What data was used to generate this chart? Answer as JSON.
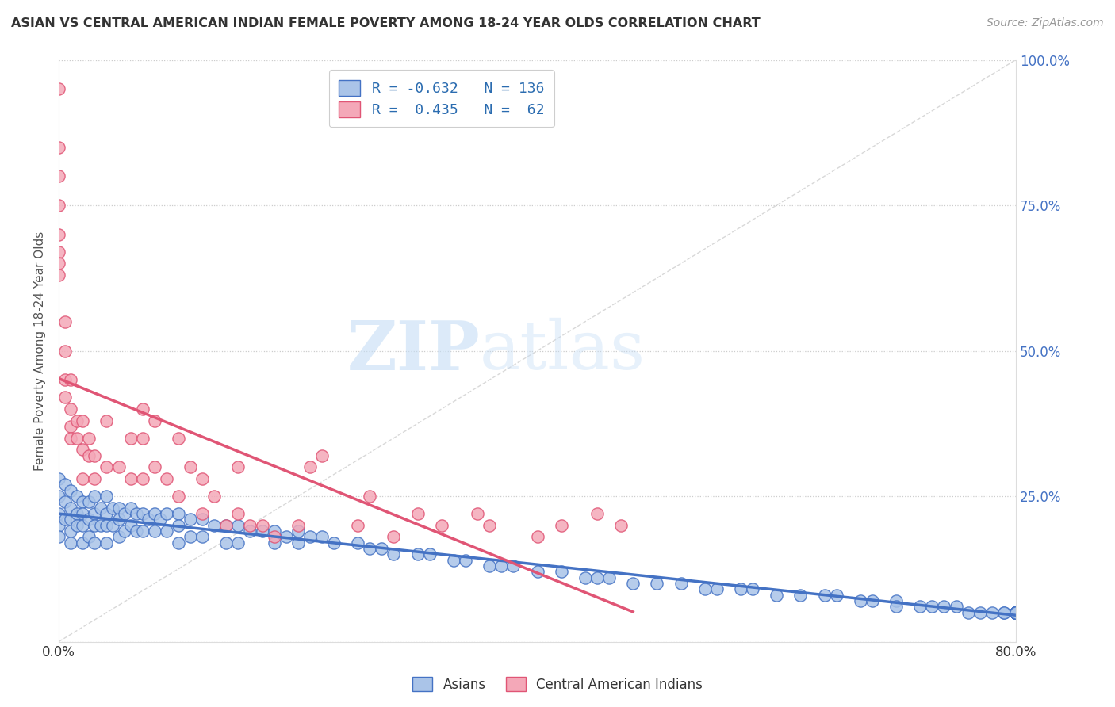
{
  "title": "ASIAN VS CENTRAL AMERICAN INDIAN FEMALE POVERTY AMONG 18-24 YEAR OLDS CORRELATION CHART",
  "source": "Source: ZipAtlas.com",
  "ylabel": "Female Poverty Among 18-24 Year Olds",
  "xlim": [
    0.0,
    0.8
  ],
  "ylim": [
    0.0,
    1.0
  ],
  "blue_color": "#aac4e8",
  "pink_color": "#f4a8b8",
  "blue_line_color": "#4472c4",
  "pink_line_color": "#e05575",
  "ref_line_color": "#c8c8c8",
  "blue_R": -0.632,
  "blue_N": 136,
  "pink_R": 0.435,
  "pink_N": 62,
  "legend_label_blue": "Asians",
  "legend_label_pink": "Central American Indians",
  "watermark_zip": "ZIP",
  "watermark_atlas": "atlas",
  "background_color": "#ffffff",
  "blue_scatter_x": [
    0.0,
    0.0,
    0.0,
    0.0,
    0.0,
    0.005,
    0.005,
    0.005,
    0.01,
    0.01,
    0.01,
    0.01,
    0.01,
    0.015,
    0.015,
    0.015,
    0.02,
    0.02,
    0.02,
    0.02,
    0.025,
    0.025,
    0.025,
    0.03,
    0.03,
    0.03,
    0.03,
    0.035,
    0.035,
    0.04,
    0.04,
    0.04,
    0.04,
    0.045,
    0.045,
    0.05,
    0.05,
    0.05,
    0.055,
    0.055,
    0.06,
    0.06,
    0.065,
    0.065,
    0.07,
    0.07,
    0.075,
    0.08,
    0.08,
    0.085,
    0.09,
    0.09,
    0.1,
    0.1,
    0.1,
    0.11,
    0.11,
    0.12,
    0.12,
    0.13,
    0.14,
    0.14,
    0.15,
    0.15,
    0.16,
    0.17,
    0.18,
    0.18,
    0.19,
    0.2,
    0.2,
    0.21,
    0.22,
    0.23,
    0.25,
    0.26,
    0.27,
    0.28,
    0.3,
    0.31,
    0.33,
    0.34,
    0.36,
    0.37,
    0.38,
    0.4,
    0.42,
    0.44,
    0.45,
    0.46,
    0.48,
    0.5,
    0.52,
    0.54,
    0.55,
    0.57,
    0.58,
    0.6,
    0.62,
    0.64,
    0.65,
    0.67,
    0.68,
    0.7,
    0.7,
    0.72,
    0.73,
    0.74,
    0.75,
    0.76,
    0.77,
    0.78,
    0.79,
    0.79,
    0.8,
    0.8,
    0.8,
    0.8,
    0.8,
    0.8,
    0.8,
    0.8,
    0.8,
    0.8,
    0.8,
    0.8,
    0.8,
    0.8,
    0.8,
    0.8,
    0.8,
    0.8,
    0.8,
    0.8,
    0.8,
    0.8
  ],
  "blue_scatter_y": [
    0.28,
    0.25,
    0.22,
    0.2,
    0.18,
    0.27,
    0.24,
    0.21,
    0.26,
    0.23,
    0.21,
    0.19,
    0.17,
    0.25,
    0.22,
    0.2,
    0.24,
    0.22,
    0.2,
    0.17,
    0.24,
    0.21,
    0.18,
    0.25,
    0.22,
    0.2,
    0.17,
    0.23,
    0.2,
    0.25,
    0.22,
    0.2,
    0.17,
    0.23,
    0.2,
    0.23,
    0.21,
    0.18,
    0.22,
    0.19,
    0.23,
    0.2,
    0.22,
    0.19,
    0.22,
    0.19,
    0.21,
    0.22,
    0.19,
    0.21,
    0.22,
    0.19,
    0.22,
    0.2,
    0.17,
    0.21,
    0.18,
    0.21,
    0.18,
    0.2,
    0.2,
    0.17,
    0.2,
    0.17,
    0.19,
    0.19,
    0.19,
    0.17,
    0.18,
    0.19,
    0.17,
    0.18,
    0.18,
    0.17,
    0.17,
    0.16,
    0.16,
    0.15,
    0.15,
    0.15,
    0.14,
    0.14,
    0.13,
    0.13,
    0.13,
    0.12,
    0.12,
    0.11,
    0.11,
    0.11,
    0.1,
    0.1,
    0.1,
    0.09,
    0.09,
    0.09,
    0.09,
    0.08,
    0.08,
    0.08,
    0.08,
    0.07,
    0.07,
    0.07,
    0.06,
    0.06,
    0.06,
    0.06,
    0.06,
    0.05,
    0.05,
    0.05,
    0.05,
    0.05,
    0.05,
    0.05,
    0.05,
    0.05,
    0.05,
    0.05,
    0.05,
    0.05,
    0.05,
    0.05,
    0.05,
    0.05,
    0.05,
    0.05,
    0.05,
    0.05,
    0.05,
    0.05,
    0.05,
    0.05,
    0.05,
    0.05
  ],
  "pink_scatter_x": [
    0.0,
    0.0,
    0.0,
    0.0,
    0.0,
    0.0,
    0.0,
    0.0,
    0.005,
    0.005,
    0.005,
    0.005,
    0.01,
    0.01,
    0.01,
    0.01,
    0.015,
    0.015,
    0.02,
    0.02,
    0.02,
    0.025,
    0.025,
    0.03,
    0.03,
    0.04,
    0.04,
    0.05,
    0.06,
    0.06,
    0.07,
    0.07,
    0.07,
    0.08,
    0.08,
    0.09,
    0.1,
    0.1,
    0.11,
    0.12,
    0.12,
    0.13,
    0.14,
    0.15,
    0.15,
    0.16,
    0.17,
    0.18,
    0.2,
    0.21,
    0.22,
    0.25,
    0.26,
    0.28,
    0.3,
    0.32,
    0.35,
    0.36,
    0.4,
    0.42,
    0.45,
    0.47
  ],
  "pink_scatter_y": [
    0.95,
    0.85,
    0.8,
    0.75,
    0.7,
    0.67,
    0.65,
    0.63,
    0.55,
    0.5,
    0.45,
    0.42,
    0.45,
    0.4,
    0.37,
    0.35,
    0.38,
    0.35,
    0.38,
    0.33,
    0.28,
    0.35,
    0.32,
    0.32,
    0.28,
    0.38,
    0.3,
    0.3,
    0.35,
    0.28,
    0.4,
    0.35,
    0.28,
    0.38,
    0.3,
    0.28,
    0.35,
    0.25,
    0.3,
    0.28,
    0.22,
    0.25,
    0.2,
    0.3,
    0.22,
    0.2,
    0.2,
    0.18,
    0.2,
    0.3,
    0.32,
    0.2,
    0.25,
    0.18,
    0.22,
    0.2,
    0.22,
    0.2,
    0.18,
    0.2,
    0.22,
    0.2
  ]
}
